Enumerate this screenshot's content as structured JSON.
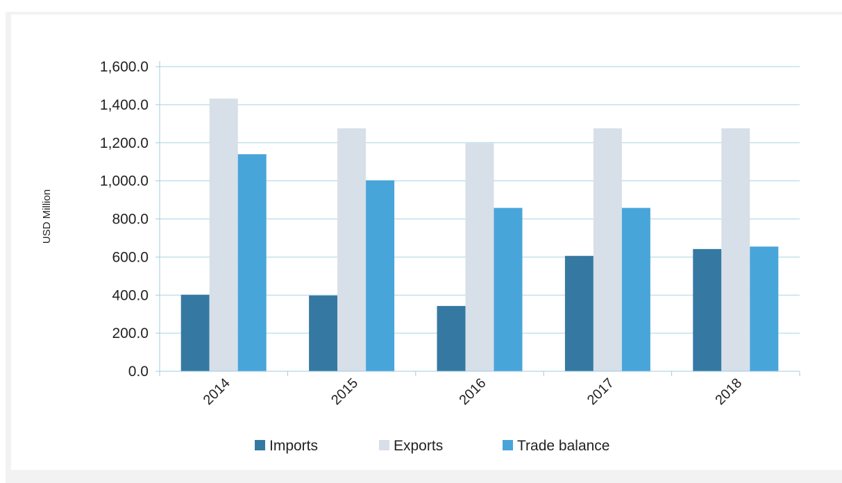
{
  "chart_data": {
    "type": "bar",
    "title": "",
    "xlabel": "",
    "ylabel": "USD Million",
    "categories": [
      "2014",
      "2015",
      "2016",
      "2017",
      "2018"
    ],
    "series": [
      {
        "name": "Imports",
        "color": "#3579a2",
        "values": [
          402,
          398,
          343,
          606,
          642
        ]
      },
      {
        "name": "Exports",
        "color": "#d7dfe9",
        "values": [
          1432,
          1276,
          1197,
          1276,
          1276
        ]
      },
      {
        "name": "Trade balance",
        "color": "#48a5da",
        "values": [
          1140,
          1003,
          858,
          858,
          655
        ]
      }
    ],
    "ylim": [
      0,
      1600
    ],
    "yticks": [
      0,
      200,
      400,
      600,
      800,
      1000,
      1200,
      1400,
      1600
    ],
    "ytick_labels": [
      "0.0",
      "200.0",
      "400.0",
      "600.0",
      "800.0",
      "1,000.0",
      "1,200.0",
      "1,400.0",
      "1,600.0"
    ],
    "grid": true,
    "legend_position": "bottom",
    "colors": {
      "gridline": "#a9d3e4",
      "axis": "#9ecde0"
    }
  }
}
